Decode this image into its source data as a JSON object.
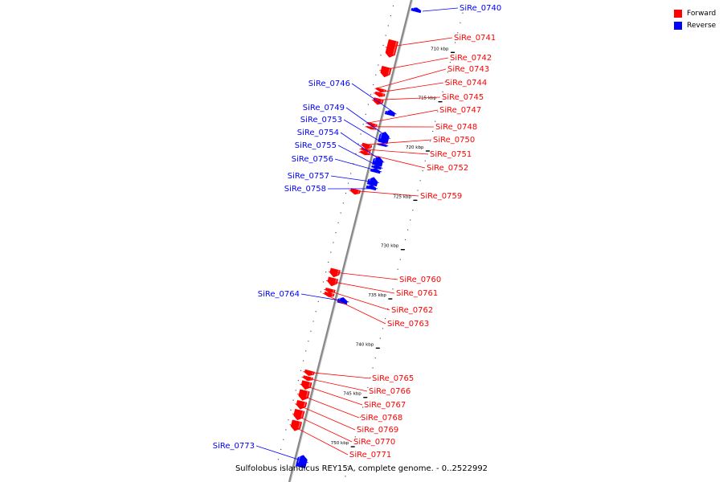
{
  "colors": {
    "forward": "#ff0000",
    "reverse": "#0000ff",
    "axis": "#888888"
  },
  "legend": {
    "forward_label": "Forward",
    "reverse_label": "Reverse"
  },
  "caption": "Sulfolobus islandicus REY15A, complete genome. - 0..2522992",
  "ticks": [
    {
      "kbp": 710,
      "label": "710 kbp"
    },
    {
      "kbp": 715,
      "label": "715 kbp"
    },
    {
      "kbp": 720,
      "label": "720 kbp"
    },
    {
      "kbp": 725,
      "label": "725 kbp"
    },
    {
      "kbp": 730,
      "label": "730 kbp"
    },
    {
      "kbp": 735,
      "label": "735 kbp"
    },
    {
      "kbp": 740,
      "label": "740 kbp"
    },
    {
      "kbp": 745,
      "label": "745 kbp"
    },
    {
      "kbp": 750,
      "label": "750 kbp"
    }
  ],
  "genes": [
    {
      "name": "SiRe_0740",
      "strand": "reverse",
      "start": 706.6,
      "end": 707.0
    },
    {
      "name": "SiRe_0741",
      "strand": "forward",
      "start": 710.3,
      "end": 712.0
    },
    {
      "name": "SiRe_0742",
      "strand": "forward",
      "start": 713.0,
      "end": 714.0
    },
    {
      "name": "SiRe_0743",
      "strand": "forward",
      "start": 715.2,
      "end": 715.5
    },
    {
      "name": "SiRe_0744",
      "strand": "forward",
      "start": 715.6,
      "end": 716.0
    },
    {
      "name": "SiRe_0745",
      "strand": "forward",
      "start": 716.2,
      "end": 716.8
    },
    {
      "name": "SiRe_0746",
      "strand": "reverse",
      "start": 717.0,
      "end": 717.5
    },
    {
      "name": "SiRe_0747",
      "strand": "forward",
      "start": 718.7,
      "end": 719.0
    },
    {
      "name": "SiRe_0748",
      "strand": "forward",
      "start": 719.1,
      "end": 719.3
    },
    {
      "name": "SiRe_0749",
      "strand": "reverse",
      "start": 719.2,
      "end": 720.3
    },
    {
      "name": "SiRe_0750",
      "strand": "forward",
      "start": 720.8,
      "end": 721.3
    },
    {
      "name": "SiRe_0751",
      "strand": "forward",
      "start": 721.3,
      "end": 721.6
    },
    {
      "name": "SiRe_0752",
      "strand": "forward",
      "start": 721.6,
      "end": 721.9
    },
    {
      "name": "SiRe_0753",
      "strand": "reverse",
      "start": 720.4,
      "end": 720.6
    },
    {
      "name": "SiRe_0754",
      "strand": "reverse",
      "start": 721.7,
      "end": 722.6
    },
    {
      "name": "SiRe_0755",
      "strand": "reverse",
      "start": 722.6,
      "end": 722.9
    },
    {
      "name": "SiRe_0756",
      "strand": "reverse",
      "start": 722.9,
      "end": 723.3
    },
    {
      "name": "SiRe_0757",
      "strand": "reverse",
      "start": 723.8,
      "end": 724.6
    },
    {
      "name": "SiRe_0758",
      "strand": "reverse",
      "start": 724.6,
      "end": 725.0
    },
    {
      "name": "SiRe_0759",
      "strand": "forward",
      "start": 725.4,
      "end": 725.9
    },
    {
      "name": "SiRe_0760",
      "strand": "forward",
      "start": 733.5,
      "end": 734.3
    },
    {
      "name": "SiRe_0761",
      "strand": "forward",
      "start": 734.4,
      "end": 735.2
    },
    {
      "name": "SiRe_0762",
      "strand": "forward",
      "start": 735.5,
      "end": 735.9
    },
    {
      "name": "SiRe_0763",
      "strand": "forward",
      "start": 735.9,
      "end": 736.3
    },
    {
      "name": "SiRe_0764",
      "strand": "reverse",
      "start": 736.0,
      "end": 736.6
    },
    {
      "name": "SiRe_0765",
      "strand": "forward",
      "start": 743.8,
      "end": 744.3
    },
    {
      "name": "SiRe_0766",
      "strand": "forward",
      "start": 744.4,
      "end": 744.8
    },
    {
      "name": "SiRe_0767",
      "strand": "forward",
      "start": 744.9,
      "end": 745.7
    },
    {
      "name": "SiRe_0768",
      "strand": "forward",
      "start": 745.8,
      "end": 746.8
    },
    {
      "name": "SiRe_0769",
      "strand": "forward",
      "start": 746.9,
      "end": 747.7
    },
    {
      "name": "SiRe_0770",
      "strand": "forward",
      "start": 747.8,
      "end": 748.8
    },
    {
      "name": "SiRe_0771",
      "strand": "forward",
      "start": 748.9,
      "end": 749.9
    },
    {
      "name": "SiRe_0773",
      "strand": "reverse",
      "start": 752.0,
      "end": 753.2
    }
  ]
}
